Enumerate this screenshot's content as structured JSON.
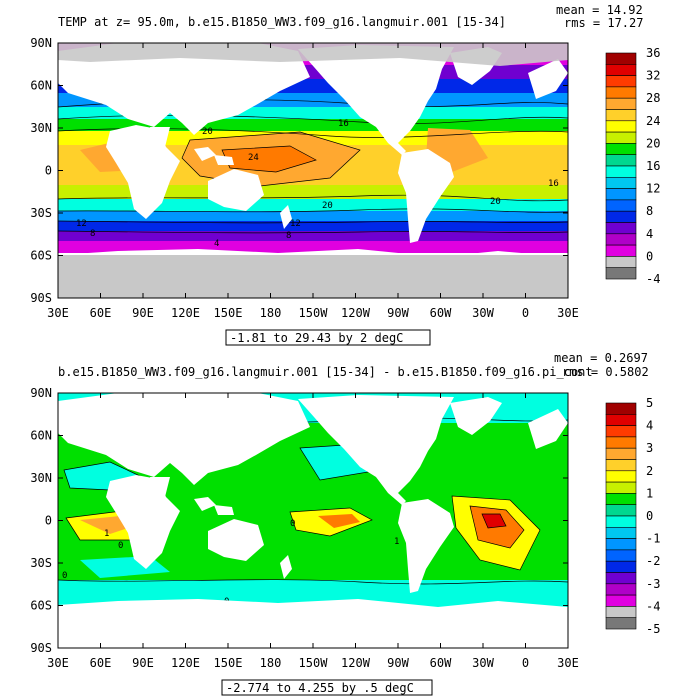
{
  "panels": [
    {
      "title": "TEMP at z=  95.0m, b.e15.B1850_WW3.f09_g16.langmuir.001 [15-34]",
      "mean": "mean = 14.92",
      "rms": "rms = 17.27",
      "range": "-1.81 to 29.43 by 2 degC",
      "colorbar_labels": [
        "36",
        "32",
        "28",
        "24",
        "20",
        "16",
        "12",
        "8",
        "4",
        "0",
        "-4"
      ],
      "colorbar_colors": [
        "#a00000",
        "#e00000",
        "#ff3b00",
        "#ff7a00",
        "#ffa830",
        "#ffd02a",
        "#ffff00",
        "#c8f000",
        "#00e000",
        "#00d890",
        "#00ffe0",
        "#00c8f0",
        "#0096ff",
        "#0064ff",
        "#0028e8",
        "#7000d0",
        "#b000c8",
        "#e000e0",
        "#c8c8c8",
        "#787878"
      ],
      "contour_labels": [
        "20",
        "16",
        "24",
        "20",
        "20",
        "12",
        "8",
        "0",
        "8",
        "12",
        "16",
        "4"
      ]
    },
    {
      "title": "b.e15.B1850_WW3.f09_g16.langmuir.001 [15-34] - b.e15.B1850.f09_g16.pi_cont",
      "mean": "mean = 0.2697",
      "rms": "rms = 0.5802",
      "range": "-2.774 to 4.255 by .5 degC",
      "colorbar_labels": [
        "5",
        "4",
        "3",
        "2",
        "1",
        "0",
        "-1",
        "-2",
        "-3",
        "-4",
        "-5"
      ],
      "colorbar_colors": [
        "#a00000",
        "#e00000",
        "#ff3b00",
        "#ff7a00",
        "#ffa830",
        "#ffd02a",
        "#ffff00",
        "#c8f000",
        "#00e000",
        "#00d890",
        "#00ffe0",
        "#00c8f0",
        "#0096ff",
        "#0064ff",
        "#0028e8",
        "#7000d0",
        "#b000c8",
        "#e000e0",
        "#c8c8c8",
        "#787878"
      ],
      "contour_labels": [
        "0",
        "0",
        "0",
        "0",
        "0",
        "1",
        "0",
        "1"
      ]
    }
  ],
  "lat_labels": [
    "90N",
    "60N",
    "30N",
    "0",
    "30S",
    "60S",
    "90S"
  ],
  "lon_labels": [
    "30E",
    "60E",
    "90E",
    "120E",
    "150E",
    "180",
    "150W",
    "120W",
    "90W",
    "60W",
    "30W",
    "0",
    "30E"
  ]
}
